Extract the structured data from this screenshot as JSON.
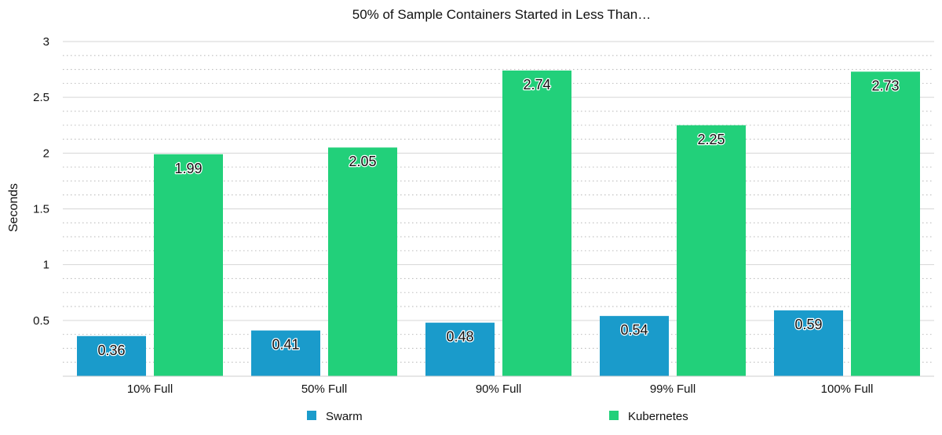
{
  "chart_data": {
    "type": "bar",
    "title": "50% of Sample Containers Started in Less Than…",
    "xlabel": "",
    "ylabel": "Seconds",
    "categories": [
      "10% Full",
      "50% Full",
      "90% Full",
      "99% Full",
      "100% Full"
    ],
    "series": [
      {
        "name": "Swarm",
        "color": "#1a9bcb",
        "values": [
          0.36,
          0.41,
          0.48,
          0.54,
          0.59
        ],
        "labels": [
          "0.36",
          "0.41",
          "0.48",
          "0.54",
          "0.59"
        ]
      },
      {
        "name": "Kubernetes",
        "color": "#22d07a",
        "values": [
          1.99,
          2.05,
          2.74,
          2.25,
          2.73
        ],
        "labels": [
          "1.99",
          "2.05",
          "2.74",
          "2.25",
          "2.73"
        ]
      }
    ],
    "ylim": [
      0,
      3
    ],
    "yticks": [
      0.5,
      1,
      1.5,
      2,
      2.5,
      3
    ],
    "ytick_labels": [
      "0.5",
      "1",
      "1.5",
      "2",
      "2.5",
      "3"
    ],
    "grid": true,
    "minor_grid": true,
    "legend_position": "bottom"
  }
}
